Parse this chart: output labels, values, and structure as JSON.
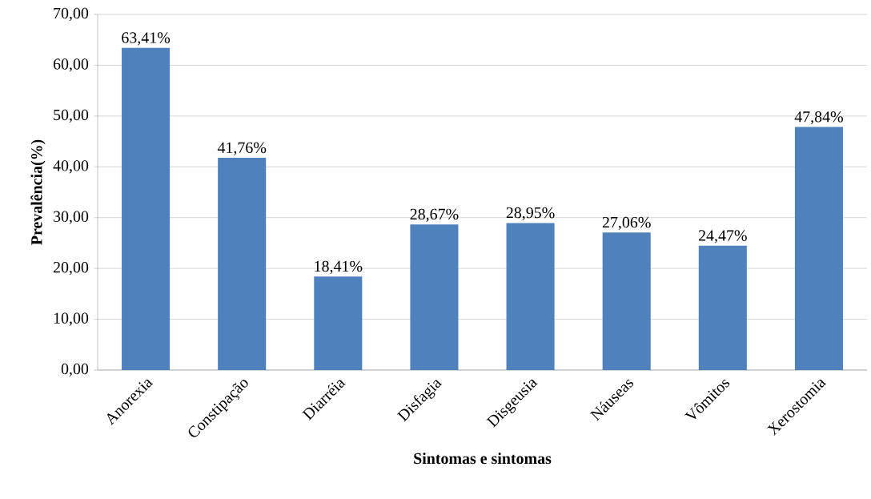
{
  "chart_data": {
    "type": "bar",
    "xlabel": "Sintomas e sintomas",
    "ylabel": "Prevalência(%)",
    "categories": [
      "Anorexia",
      "Constipação",
      "Diarréia",
      "Disfagia",
      "Disgeusia",
      "Náuseas",
      "Vômitos",
      "Xerostomia"
    ],
    "values": [
      63.41,
      41.76,
      18.41,
      28.67,
      28.95,
      27.06,
      24.47,
      47.84
    ],
    "value_labels": [
      "63,41%",
      "41,76%",
      "18,41%",
      "28,67%",
      "28,95%",
      "27,06%",
      "24,47%",
      "47,84%"
    ],
    "color": "#4f81bd",
    "ylim": [
      0,
      70
    ],
    "yticks": [
      {
        "value": 0,
        "label": "0,00"
      },
      {
        "value": 10,
        "label": "10,00"
      },
      {
        "value": 20,
        "label": "20,00"
      },
      {
        "value": 30,
        "label": "30,00"
      },
      {
        "value": 40,
        "label": "40,00"
      },
      {
        "value": 50,
        "label": "50,00"
      },
      {
        "value": 60,
        "label": "60,00"
      },
      {
        "value": 70,
        "label": "70,00"
      }
    ],
    "grid": "y"
  }
}
